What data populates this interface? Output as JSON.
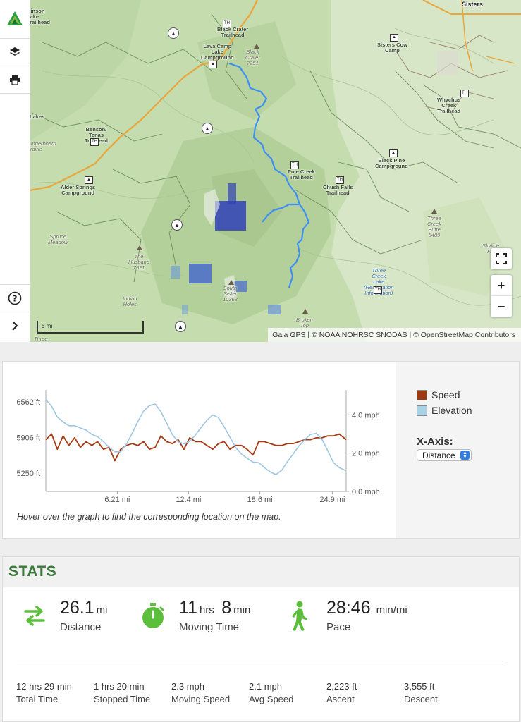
{
  "map": {
    "attribution": "Gaia GPS | © NOAA NOHRSC SNODAS | © OpenStreetMap Contributors",
    "scale_label": "5 mi",
    "labels": {
      "sisters": "Sisters",
      "binson_lake": "Binson\nLake\nTrailhead",
      "black_crater_th": "Black Crater\nTrailhead",
      "lava_camp": "Lava Camp\nLake\nCampground",
      "black_crater": "Black\nCrater\n7251",
      "sisters_cow_camp": "Sisters Cow\nCamp",
      "whychus_creek": "Whychus\nCreek\nTrailhead",
      "benson_tenas": "Benson/\nTenas\nTrailhead",
      "gingerboard": "Gingerboard\nPrairie",
      "lakes": "Lakes",
      "black_pine": "Black Pine\nCampground",
      "pole_creek": "Pole Creek\nTrailhead",
      "chush_falls": "Chush Falls\nTrailhead",
      "alder_springs": "Alder Springs\nCampground",
      "three_creek_butte": "Three\nCreek\nButte\n5489",
      "spruce_meadow": "Spruce\nMeadow",
      "husband": "The\nHusband\n7521",
      "skyline": "Skyline\nF...",
      "three_creek_lake": "Three\nCreek\nLake\n(Reservation\nInformation)",
      "south_sister": "South\nSister\n10363",
      "indian_holes": "Indian\nHoles",
      "broken_top": "Broken\nTop",
      "three": "Three"
    }
  },
  "chart_data": {
    "type": "line",
    "x_unit": "mi",
    "x_ticks": [
      "6.21 mi",
      "12.4 mi",
      "18.6 mi",
      "24.9 mi"
    ],
    "x_tick_values": [
      6.21,
      12.4,
      18.6,
      24.9
    ],
    "xlim": [
      0,
      26.1
    ],
    "y_left_ticks": [
      "6562 ft",
      "5906 ft",
      "5250 ft"
    ],
    "y_left_values": [
      6562,
      5906,
      5250
    ],
    "y_left_lim": [
      4910,
      6780
    ],
    "y_right_ticks": [
      "4.0 mph",
      "2.0 mph",
      "0.0 mph"
    ],
    "y_right_values": [
      4.0,
      2.0,
      0.0
    ],
    "y_right_lim": [
      0,
      5.3
    ],
    "series": [
      {
        "name": "Speed",
        "color": "#a63a14",
        "axis": "right",
        "x": [
          0,
          0.5,
          1,
          1.5,
          2,
          2.5,
          3,
          3.5,
          4,
          4.5,
          5,
          5.5,
          6,
          6.5,
          7,
          7.5,
          8,
          8.5,
          9,
          9.5,
          10,
          10.5,
          11,
          11.5,
          12,
          12.5,
          13,
          13.5,
          14,
          14.5,
          15,
          15.5,
          16,
          16.5,
          17,
          17.5,
          18,
          18.5,
          19,
          19.5,
          20,
          20.5,
          21,
          21.5,
          22,
          22.5,
          23,
          23.5,
          24,
          24.5,
          25,
          25.5,
          26.1
        ],
        "y": [
          2.7,
          3.0,
          2.2,
          2.9,
          2.4,
          2.8,
          2.3,
          2.6,
          2.4,
          2.6,
          2.2,
          2.3,
          1.6,
          2.2,
          2.4,
          2.5,
          2.4,
          2.6,
          2.2,
          2.3,
          2.9,
          2.6,
          2.5,
          2.7,
          2.2,
          2.8,
          2.6,
          2.6,
          2.4,
          2.2,
          2.5,
          2.6,
          2.2,
          2.4,
          2.4,
          2.2,
          1.9,
          2.6,
          2.6,
          2.5,
          2.4,
          2.4,
          2.5,
          2.5,
          2.6,
          2.7,
          2.7,
          2.8,
          2.8,
          2.9,
          2.9,
          3.0,
          2.7
        ]
      },
      {
        "name": "Elevation",
        "color": "#9ec6e0",
        "axis": "left",
        "x": [
          0,
          0.5,
          1,
          1.5,
          2,
          2.5,
          3,
          3.5,
          4,
          4.5,
          5,
          5.5,
          6,
          6.5,
          7,
          7.5,
          8,
          8.5,
          9,
          9.5,
          10,
          10.5,
          11,
          11.5,
          12,
          12.5,
          13,
          13.5,
          14,
          14.5,
          15,
          15.5,
          16,
          16.5,
          17,
          17.5,
          18,
          18.5,
          19,
          19.5,
          20,
          20.5,
          21,
          21.5,
          22,
          22.5,
          23,
          23.5,
          24,
          24.5,
          25,
          25.5,
          26.1
        ],
        "y": [
          6600,
          6480,
          6280,
          6190,
          6120,
          6120,
          6080,
          6040,
          5960,
          5920,
          5830,
          5720,
          5640,
          5640,
          5780,
          5980,
          6200,
          6390,
          6490,
          6520,
          6380,
          6170,
          5960,
          5820,
          5790,
          5830,
          5950,
          6090,
          6220,
          6320,
          6270,
          6100,
          5910,
          5720,
          5600,
          5520,
          5450,
          5440,
          5350,
          5270,
          5220,
          5300,
          5460,
          5600,
          5750,
          5860,
          5960,
          5980,
          5870,
          5660,
          5440,
          5350,
          5290
        ]
      }
    ],
    "legend": [
      {
        "name": "Speed",
        "color": "#9b3a11"
      },
      {
        "name": "Elevation",
        "color": "#a8d2e6"
      }
    ],
    "x_axis_title": "X-Axis:",
    "x_axis_option": "Distance",
    "hint": "Hover over the graph to find the corresponding location on the map."
  },
  "stats": {
    "title": "STATS",
    "big": [
      {
        "value": "26.1",
        "unit": "mi",
        "label": "Distance",
        "icon": "swap-arrows-icon"
      },
      {
        "value": "11",
        "unit": "hrs",
        "value2": "8",
        "unit2": "min",
        "label": "Moving Time",
        "icon": "stopwatch-icon"
      },
      {
        "value": "28:46",
        "unit": "min/mi",
        "label": "Pace",
        "icon": "hiker-icon"
      }
    ],
    "small": [
      {
        "value": "12",
        "unit": "hrs",
        "value2": "29",
        "unit2": "min",
        "label": "Total Time"
      },
      {
        "value": "1",
        "unit": "hrs",
        "value2": "20",
        "unit2": "min",
        "label": "Stopped Time"
      },
      {
        "value": "2.3",
        "unit": "mph",
        "label": "Moving Speed"
      },
      {
        "value": "2.1",
        "unit": "mph",
        "label": "Avg Speed"
      },
      {
        "value": "2,223",
        "unit": "ft",
        "label": "Ascent"
      },
      {
        "value": "3,555",
        "unit": "ft",
        "label": "Descent"
      }
    ],
    "accent": "#5bbf3c"
  }
}
